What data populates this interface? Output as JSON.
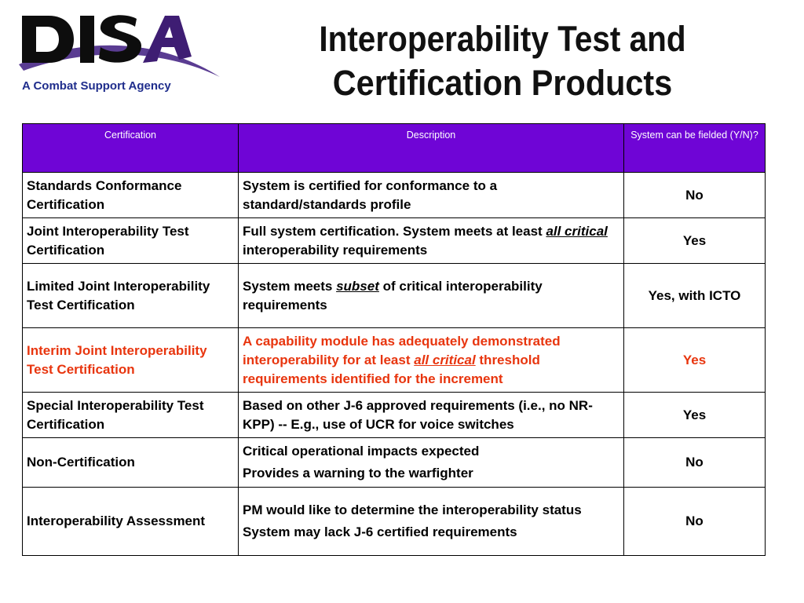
{
  "logo": {
    "text": "DISA",
    "accent_color": "#3e1d73",
    "swoosh_color": "#5a3c92"
  },
  "tagline": "A Combat Support Agency",
  "title": {
    "line1": "Interoperability Test and",
    "line2": "Certification Products"
  },
  "table": {
    "header_color": "#6f05d6",
    "highlight_color": "#e8350e",
    "columns": [
      "Certification",
      "Description",
      "System can be fielded (Y/N)?"
    ],
    "rows": [
      {
        "certification": "Standards Conformance Certification",
        "description": "System is certified for conformance to a standard/standards profile",
        "fielded": "No"
      },
      {
        "certification": "Joint Interoperability Test Certification",
        "description_pre": "Full system certification.  System meets at least ",
        "description_em": "all critical",
        "description_post": " interoperability requirements",
        "fielded": "Yes"
      },
      {
        "certification": "Limited Joint Interoperability Test Certification",
        "description_pre": "System meets ",
        "description_em": "subset",
        "description_post": " of critical interoperability requirements",
        "fielded": "Yes, with ICTO"
      },
      {
        "certification": "Interim Joint Interoperability Test Certification",
        "description_pre": "A capability module has adequately demonstrated interoperability for at least ",
        "description_em": "all critical",
        "description_post": " threshold requirements identified for the increment",
        "fielded": "Yes",
        "highlighted": true
      },
      {
        "certification": "Special Interoperability Test Certification",
        "description": "Based on other J-6 approved requirements (i.e., no NR-KPP) -- E.g., use of UCR for voice switches",
        "fielded": "Yes"
      },
      {
        "certification": "Non-Certification",
        "description_lines": [
          "Critical operational impacts expected",
          "Provides a warning to the warfighter"
        ],
        "fielded": "No"
      },
      {
        "certification": "Interoperability Assessment",
        "description_lines": [
          "PM would like to determine the interoperability status",
          "System may lack J-6 certified requirements"
        ],
        "fielded": "No"
      }
    ]
  }
}
